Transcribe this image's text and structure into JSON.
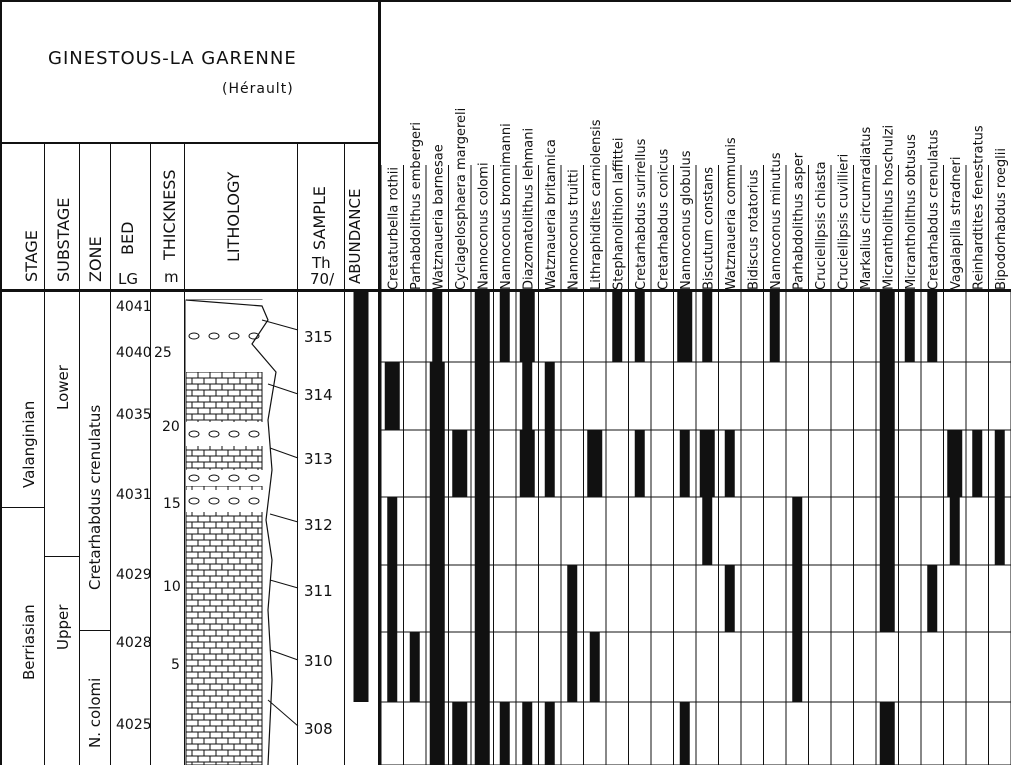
{
  "header": {
    "title": "GINESTOUS-LA GARENNE",
    "subtitle": "(Hérault)"
  },
  "columns": {
    "stage": "STAGE",
    "substage": "SUBSTAGE",
    "zone": "ZONE",
    "bed": "BED",
    "bed_unit": "LG",
    "thickness": "THICKNESS",
    "thickness_unit": "m",
    "lithology": "LITHOLOGY",
    "sample": "SAMPLE",
    "sample_prefix": "Th",
    "sample_sub": "70/",
    "abundance": "ABUNDANCE"
  },
  "stages": [
    "Valanginian",
    "Berriasian"
  ],
  "substages": [
    "Lower",
    "Upper"
  ],
  "zones": [
    "Cretarhabdus crenulatus",
    "N. colomi"
  ],
  "beds": [
    "4041",
    "4040",
    "4035",
    "4031",
    "4029",
    "4028",
    "4025"
  ],
  "thickness_ticks": [
    "25",
    "20",
    "15",
    "10",
    "5"
  ],
  "samples": [
    "315",
    "314",
    "313",
    "312",
    "311",
    "310",
    "308"
  ],
  "species": [
    "Cretaturbella rothii",
    "Parhabdolithus embergeri",
    "Watznaueria barnesae",
    "Cyclagelosphaera margereli",
    "Nannoconus colomi",
    "Nannoconus bronnimanni",
    "Diazomatolithus lehmani",
    "Watznaueria britannica",
    "Nannoconus truitti",
    "Lithraphidites carniolensis",
    "Stephanolithion laffittei",
    "Cretarhabdus surirellus",
    "Cretarhabdus conicus",
    "Nannoconus globulus",
    "Biscutum constans",
    "Watznaueria communis",
    "Bidiscus rotatorius",
    "Nannoconus minutus",
    "Parhabdolithus asper",
    "Cruciellipsis chiasta",
    "Cruciellipsis cuvillieri",
    "Markalius circumradiatus",
    "Micrantholithus hoschulzi",
    "Micrantholithus obtusus",
    "Cretarhabdus crenulatus",
    "Vagalapilla stradneri",
    "Reinhardtites fenestratus",
    "Bipodorhabdus roeglii"
  ],
  "abundance_levels": [
    3,
    3,
    3,
    3,
    3,
    3,
    0
  ],
  "occurrence": [
    [
      0,
      3,
      0,
      2,
      2,
      2,
      0
    ],
    [
      0,
      0,
      0,
      0,
      0,
      2,
      0
    ],
    [
      2,
      3,
      3,
      3,
      3,
      3,
      3
    ],
    [
      0,
      0,
      3,
      0,
      0,
      0,
      3
    ],
    [
      3,
      3,
      3,
      3,
      3,
      3,
      3
    ],
    [
      2,
      0,
      0,
      0,
      0,
      0,
      2
    ],
    [
      3,
      2,
      3,
      0,
      0,
      0,
      2
    ],
    [
      0,
      2,
      2,
      0,
      0,
      0,
      2
    ],
    [
      0,
      0,
      0,
      0,
      2,
      2,
      0
    ],
    [
      0,
      0,
      3,
      0,
      0,
      2,
      0
    ],
    [
      2,
      0,
      0,
      0,
      0,
      0,
      0
    ],
    [
      2,
      0,
      2,
      0,
      0,
      0,
      0
    ],
    [
      0,
      0,
      0,
      0,
      0,
      0,
      0
    ],
    [
      3,
      0,
      2,
      0,
      0,
      0,
      2
    ],
    [
      2,
      0,
      3,
      2,
      0,
      0,
      0
    ],
    [
      0,
      0,
      2,
      0,
      2,
      0,
      0
    ],
    [
      0,
      0,
      0,
      0,
      0,
      0,
      0
    ],
    [
      2,
      0,
      0,
      0,
      0,
      0,
      0
    ],
    [
      0,
      0,
      0,
      2,
      2,
      2,
      0
    ],
    [
      0,
      0,
      0,
      0,
      0,
      0,
      0
    ],
    [
      0,
      0,
      0,
      0,
      0,
      0,
      0
    ],
    [
      0,
      0,
      0,
      0,
      0,
      0,
      0
    ],
    [
      3,
      3,
      3,
      3,
      3,
      0,
      3
    ],
    [
      2,
      0,
      0,
      0,
      0,
      0,
      0
    ],
    [
      2,
      0,
      0,
      0,
      2,
      0,
      0
    ],
    [
      0,
      0,
      3,
      2,
      0,
      0,
      0
    ],
    [
      0,
      0,
      2,
      0,
      0,
      0,
      0
    ],
    [
      0,
      0,
      2,
      2,
      0,
      0,
      0
    ]
  ]
}
